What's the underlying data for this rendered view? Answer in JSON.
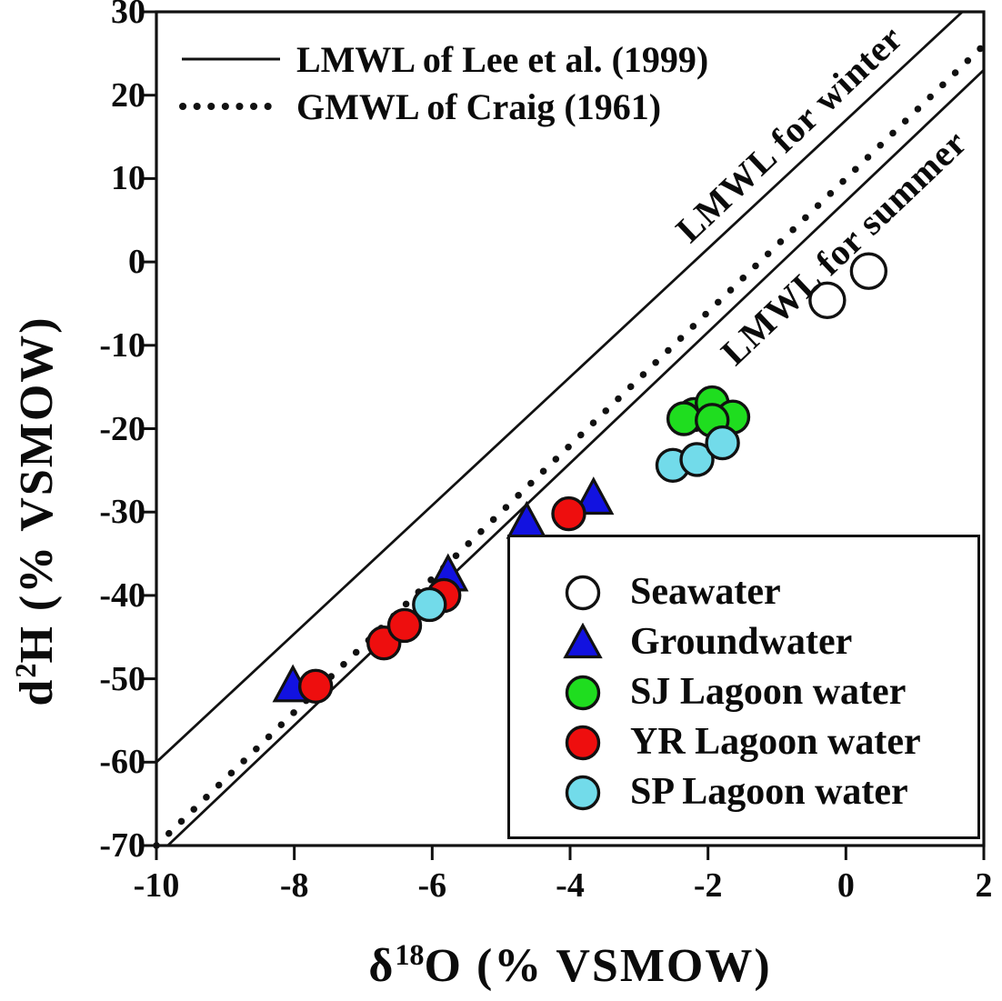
{
  "chart_data": {
    "type": "scatter",
    "title": "",
    "xlabel": "δ18O (% VSMOW)",
    "ylabel": "d2H (% VSMOW)",
    "x_axis_title": {
      "prefix": "δ",
      "sup": "18",
      "suffix": "O (% VSMOW)"
    },
    "y_axis_title": {
      "prefix": "d",
      "sup": "2",
      "suffix": "H (% VSMOW)"
    },
    "xlim": [
      -10,
      2
    ],
    "ylim": [
      -70,
      30
    ],
    "x_ticks": [
      -10,
      -8,
      -6,
      -4,
      -2,
      0,
      2
    ],
    "y_ticks": [
      30,
      20,
      10,
      0,
      -10,
      -20,
      -30,
      -40,
      -50,
      -60,
      -70
    ],
    "grid": false,
    "frame_color": "#111111",
    "lines": [
      {
        "label": "LMWL for winter",
        "legend": "LMWL of Lee et al. (1999)",
        "style": "solid",
        "slope": 7.7,
        "intercept": 17.0,
        "color": "#111111"
      },
      {
        "label": "",
        "legend": "GMWL of Craig (1961)",
        "style": "dotted",
        "slope": 8.0,
        "intercept": 10.0,
        "color": "#111111"
      },
      {
        "label": "LMWL for summer",
        "legend": "LMWL of Lee et al. (1999)",
        "style": "solid",
        "slope": 7.86,
        "intercept": 7.3,
        "color": "#111111"
      }
    ],
    "line_legend": [
      {
        "style": "solid",
        "label": "LMWL of Lee et al. (1999)"
      },
      {
        "style": "dotted",
        "label": "GMWL of Craig (1961)"
      }
    ],
    "series": [
      {
        "name": "Seawater",
        "marker": "circle",
        "fill": "#FFFFFF",
        "stroke": "#111111",
        "size": 19,
        "points": [
          [
            -0.27,
            -4.6
          ],
          [
            0.33,
            -1.1
          ]
        ]
      },
      {
        "name": "Groundwater",
        "marker": "triangle",
        "fill": "#1212E0",
        "stroke": "#111111",
        "size": 21,
        "points": [
          [
            -8.02,
            -50.9
          ],
          [
            -5.77,
            -37.6
          ],
          [
            -4.63,
            -31.3
          ],
          [
            -3.66,
            -28.4
          ]
        ]
      },
      {
        "name": "SJ Lagoon water",
        "marker": "circle",
        "fill": "#1FDD1F",
        "stroke": "#111111",
        "size": 17.5,
        "points": [
          [
            -2.2,
            -18.3
          ],
          [
            -2.35,
            -18.8
          ],
          [
            -1.94,
            -16.9
          ],
          [
            -1.64,
            -18.6
          ],
          [
            -1.94,
            -19.0
          ]
        ]
      },
      {
        "name": "YR Lagoon water",
        "marker": "circle",
        "fill": "#EE0E0E",
        "stroke": "#111111",
        "size": 17.5,
        "points": [
          [
            -7.69,
            -50.9
          ],
          [
            -6.7,
            -45.7
          ],
          [
            -6.4,
            -43.6
          ],
          [
            -5.83,
            -40.0
          ],
          [
            -4.02,
            -30.2
          ]
        ]
      },
      {
        "name": "SP Lagoon water",
        "marker": "circle",
        "fill": "#72DBEA",
        "stroke": "#111111",
        "size": 17.5,
        "points": [
          [
            -6.04,
            -41.1
          ],
          [
            -2.51,
            -24.4
          ],
          [
            -2.16,
            -23.7
          ],
          [
            -1.79,
            -21.7
          ]
        ]
      }
    ],
    "draw_order": [
      1,
      3,
      2,
      4,
      0
    ],
    "legend_position": "inside lower-right box"
  }
}
